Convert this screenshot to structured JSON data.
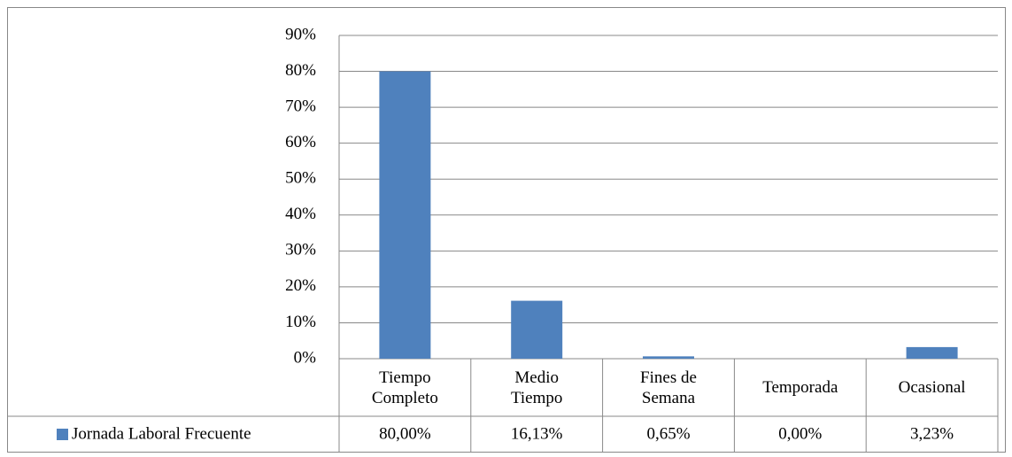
{
  "chart_data": {
    "type": "bar",
    "categories": [
      "Tiempo Completo",
      "Medio Tiempo",
      "Fines de Semana",
      "Temporada",
      "Ocasional"
    ],
    "series": [
      {
        "name": "Jornada Laboral Frecuente",
        "color": "#4f81bd",
        "values": [
          80,
          16.13,
          0.65,
          0,
          3.23
        ],
        "value_labels": [
          "80,00%",
          "16,13%",
          "0,65%",
          "0,00%",
          "3,23%"
        ]
      }
    ],
    "ylim": [
      0,
      90
    ],
    "yticks": [
      {
        "value": 0,
        "label": "0%"
      },
      {
        "value": 10,
        "label": "10%"
      },
      {
        "value": 20,
        "label": "20%"
      },
      {
        "value": 30,
        "label": "30%"
      },
      {
        "value": 40,
        "label": "40%"
      },
      {
        "value": 50,
        "label": "50%"
      },
      {
        "value": 60,
        "label": "60%"
      },
      {
        "value": 70,
        "label": "70%"
      },
      {
        "value": 80,
        "label": "80%"
      },
      {
        "value": 90,
        "label": "90%"
      }
    ],
    "grid": true
  }
}
